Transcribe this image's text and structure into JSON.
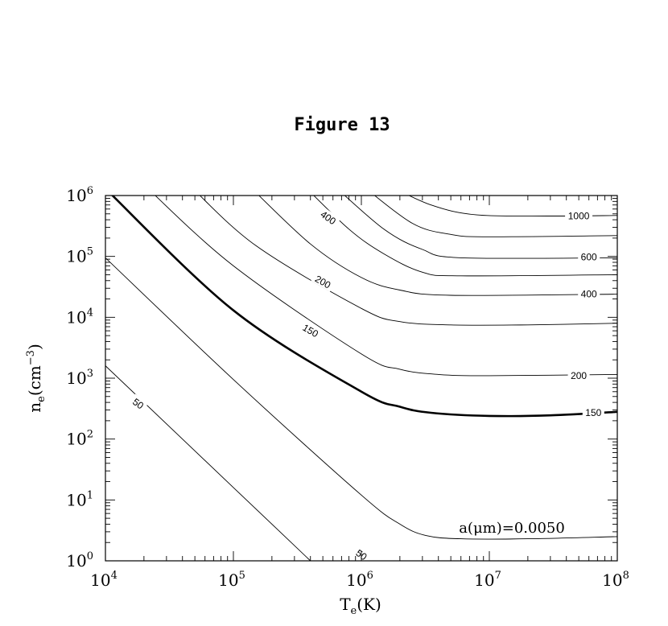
{
  "page_title": "Figure 13",
  "chart_data": {
    "type": "contour",
    "title": "",
    "xlabel_main": "T",
    "xlabel_sub": "e",
    "xlabel_unit": "(K)",
    "ylabel_main": "n",
    "ylabel_sub": "e",
    "ylabel_unit": "(cm",
    "ylabel_unit_sup": "−3",
    "ylabel_unit_close": ")",
    "x_scale": "log",
    "y_scale": "log",
    "xlim": [
      10000,
      100000000
    ],
    "ylim": [
      1,
      1000000
    ],
    "x_ticks": [
      {
        "base": "10",
        "exp": "4",
        "value": 10000
      },
      {
        "base": "10",
        "exp": "5",
        "value": 100000
      },
      {
        "base": "10",
        "exp": "6",
        "value": 1000000
      },
      {
        "base": "10",
        "exp": "7",
        "value": 10000000
      },
      {
        "base": "10",
        "exp": "8",
        "value": 100000000
      }
    ],
    "y_ticks": [
      {
        "base": "10",
        "exp": "0",
        "value": 1
      },
      {
        "base": "10",
        "exp": "1",
        "value": 10
      },
      {
        "base": "10",
        "exp": "2",
        "value": 100
      },
      {
        "base": "10",
        "exp": "3",
        "value": 1000
      },
      {
        "base": "10",
        "exp": "4",
        "value": 10000
      },
      {
        "base": "10",
        "exp": "5",
        "value": 100000
      },
      {
        "base": "10",
        "exp": "6",
        "value": 1000000
      }
    ],
    "annotation": "a(μm)=0.0050",
    "series": [
      {
        "bold": false,
        "points": [
          [
            10000,
            1600
          ],
          [
            100000,
            16
          ],
          [
            1000000,
            0.16
          ]
        ]
      },
      {
        "bold": false,
        "points": [
          [
            10000,
            95000
          ],
          [
            100000,
            950
          ],
          [
            1000000,
            12
          ],
          [
            2000000,
            4
          ],
          [
            3200000,
            2.6
          ],
          [
            6000000,
            2.3
          ],
          [
            20000000,
            2.3
          ],
          [
            100000000,
            2.5
          ]
        ]
      },
      {
        "bold": true,
        "points": [
          [
            10000,
            1300000
          ],
          [
            100000,
            13000
          ],
          [
            1000000,
            600
          ],
          [
            2000000,
            340
          ],
          [
            3500000,
            270
          ],
          [
            10000000,
            240
          ],
          [
            30000000,
            245
          ],
          [
            100000000,
            280
          ]
        ]
      },
      {
        "bold": false,
        "points": [
          [
            20000,
            1500000
          ],
          [
            100000,
            70000
          ],
          [
            1000000,
            2500
          ],
          [
            2000000,
            1400
          ],
          [
            4000000,
            1150
          ],
          [
            10000000,
            1100
          ],
          [
            100000000,
            1150
          ]
        ]
      },
      {
        "bold": false,
        "points": [
          [
            45000,
            1500000
          ],
          [
            150000,
            150000
          ],
          [
            1000000,
            14000
          ],
          [
            2000000,
            8500
          ],
          [
            5000000,
            7500
          ],
          [
            20000000,
            7500
          ],
          [
            100000000,
            8000
          ]
        ]
      },
      {
        "bold": false,
        "points": [
          [
            130000,
            1500000
          ],
          [
            400000,
            160000
          ],
          [
            1000000,
            45000
          ],
          [
            2000000,
            28000
          ],
          [
            5000000,
            23000
          ],
          [
            100000000,
            24000
          ]
        ]
      },
      {
        "bold": false,
        "points": [
          [
            350000,
            1500000
          ],
          [
            800000,
            280000
          ],
          [
            1500000,
            110000
          ],
          [
            3000000,
            55000
          ],
          [
            6000000,
            48000
          ],
          [
            100000000,
            50000
          ]
        ]
      },
      {
        "bold": false,
        "points": [
          [
            600000,
            1500000
          ],
          [
            1500000,
            280000
          ],
          [
            3000000,
            130000
          ],
          [
            6000000,
            95000
          ],
          [
            100000000,
            95000
          ]
        ]
      },
      {
        "bold": false,
        "points": [
          [
            1000000,
            1500000
          ],
          [
            2500000,
            350000
          ],
          [
            5000000,
            230000
          ],
          [
            10000000,
            210000
          ],
          [
            100000000,
            220000
          ]
        ]
      },
      {
        "bold": false,
        "points": [
          [
            1600000,
            1500000
          ],
          [
            3500000,
            700000
          ],
          [
            8000000,
            480000
          ],
          [
            30000000,
            460000
          ],
          [
            100000000,
            470000
          ]
        ]
      }
    ],
    "contour_labels": [
      {
        "text": "50",
        "x": 18000,
        "y": 380,
        "angle": 35
      },
      {
        "text": "50",
        "x": 1000000,
        "y": 1.25,
        "angle": 35
      },
      {
        "text": "150",
        "x": 400000,
        "y": 6000,
        "angle": 30
      },
      {
        "text": "200",
        "x": 500000,
        "y": 38000,
        "angle": 30
      },
      {
        "text": "400",
        "x": 550000,
        "y": 430000,
        "angle": 35
      },
      {
        "text": "1000",
        "x": 50000000,
        "y": 460000,
        "angle": 0
      },
      {
        "text": "600",
        "x": 60000000,
        "y": 98000,
        "angle": 0
      },
      {
        "text": "400",
        "x": 60000000,
        "y": 24000,
        "angle": 0
      },
      {
        "text": "200",
        "x": 50000000,
        "y": 1100,
        "angle": 0
      },
      {
        "text": "150",
        "x": 65000000,
        "y": 270,
        "angle": 0
      }
    ]
  }
}
